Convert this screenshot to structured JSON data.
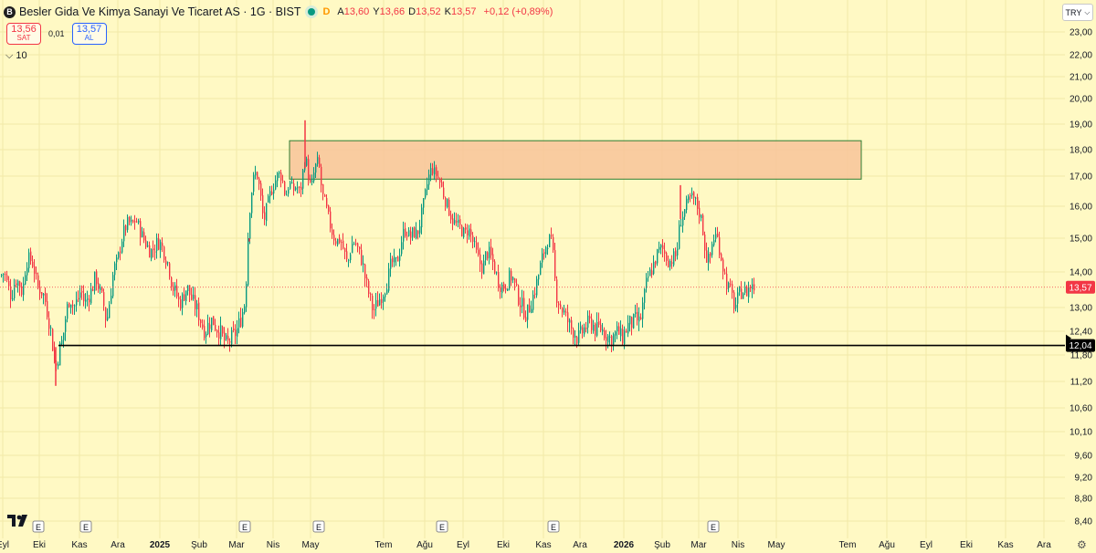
{
  "header": {
    "logo_letter": "B",
    "symbol": "Besler Gida Ve Kimya Sanayi Ve Ticaret AS · 1G · BIST",
    "d_badge": "D",
    "open_label": "A",
    "open": "13,60",
    "high_label": "Y",
    "high": "13,66",
    "low_label": "D",
    "low": "13,52",
    "close_label": "K",
    "close": "13,57",
    "change": "+0,12 (+0,89%)"
  },
  "trade": {
    "sell_price": "13,56",
    "sell_label": "SAT",
    "spread": "0,01",
    "buy_price": "13,57",
    "buy_label": "AL"
  },
  "volume_toggle": {
    "icon": "chevron-down-icon",
    "value": "10"
  },
  "currency": {
    "label": "TRY",
    "icon": "chevron-down-icon"
  },
  "colors": {
    "up": "#089981",
    "down": "#f23645",
    "zone_fill": "#f8c49a",
    "zone_border": "#2e7d32",
    "line": "#000000"
  },
  "chart_data": {
    "type": "candlestick",
    "y_ticks": [
      "23,00",
      "22,00",
      "21,00",
      "20,00",
      "19,00",
      "18,00",
      "17,00",
      "16,00",
      "15,00",
      "14,00",
      "13,00",
      "12,40",
      "11,80",
      "11,20",
      "10,60",
      "10,10",
      "9,60",
      "9,20",
      "8,80",
      "8,40"
    ],
    "y_tick_values": [
      23,
      22,
      21,
      20,
      19,
      18,
      17,
      16,
      15,
      14,
      13,
      12.4,
      11.8,
      11.2,
      10.6,
      10.1,
      9.6,
      9.2,
      8.8,
      8.4
    ],
    "x_labels": [
      "Eyl",
      "Eki",
      "Kas",
      "Ara",
      "2025",
      "Şub",
      "Mar",
      "Nis",
      "May",
      "Tem",
      "Ağu",
      "Eyl",
      "Eki",
      "Kas",
      "Ara",
      "2026",
      "Şub",
      "Mar",
      "Nis",
      "May",
      "Tem",
      "Ağu",
      "Eyl",
      "Eki",
      "Kas",
      "Ara"
    ],
    "bold_x_labels": [
      "2025",
      "2026"
    ],
    "earnings_marker": "E",
    "earnings_count": 7,
    "last_price_label": "13,57",
    "support_label": "12,04",
    "support_level": 12.04,
    "resistance_zone": [
      16.9,
      18.35
    ],
    "approx_path": [
      [
        0,
        13.9
      ],
      [
        4,
        14.0
      ],
      [
        8,
        13.6
      ],
      [
        12,
        13.3
      ],
      [
        16,
        13.8
      ],
      [
        20,
        13.7
      ],
      [
        24,
        13.4
      ],
      [
        28,
        14.3
      ],
      [
        32,
        14.4
      ],
      [
        36,
        14.2
      ],
      [
        40,
        13.6
      ],
      [
        44,
        13.5
      ],
      [
        48,
        13.3
      ],
      [
        52,
        12.8
      ],
      [
        56,
        12.3
      ],
      [
        58,
        11.8
      ],
      [
        60,
        11.45
      ],
      [
        64,
        11.9
      ],
      [
        68,
        12.2
      ],
      [
        72,
        12.9
      ],
      [
        76,
        13.3
      ],
      [
        80,
        13.0
      ],
      [
        84,
        13.2
      ],
      [
        88,
        13.5
      ],
      [
        92,
        13.1
      ],
      [
        96,
        13.3
      ],
      [
        100,
        13.5
      ],
      [
        104,
        13.9
      ],
      [
        108,
        13.5
      ],
      [
        112,
        13.2
      ],
      [
        116,
        12.6
      ],
      [
        120,
        13.3
      ],
      [
        124,
        14.1
      ],
      [
        128,
        14.3
      ],
      [
        132,
        14.9
      ],
      [
        136,
        15.3
      ],
      [
        140,
        15.5
      ],
      [
        144,
        15.4
      ],
      [
        148,
        15.6
      ],
      [
        152,
        15.3
      ],
      [
        156,
        15.0
      ],
      [
        160,
        14.8
      ],
      [
        164,
        14.6
      ],
      [
        168,
        14.7
      ],
      [
        172,
        14.9
      ],
      [
        176,
        14.8
      ],
      [
        180,
        14.5
      ],
      [
        184,
        14.2
      ],
      [
        188,
        13.6
      ],
      [
        192,
        13.4
      ],
      [
        196,
        13.1
      ],
      [
        200,
        13.3
      ],
      [
        204,
        13.6
      ],
      [
        208,
        13.3
      ],
      [
        212,
        13.1
      ],
      [
        216,
        12.9
      ],
      [
        220,
        12.6
      ],
      [
        224,
        12.4
      ],
      [
        228,
        12.6
      ],
      [
        232,
        12.7
      ],
      [
        236,
        12.5
      ],
      [
        240,
        12.4
      ],
      [
        244,
        12.2
      ],
      [
        248,
        12.05
      ],
      [
        252,
        12.2
      ],
      [
        256,
        12.3
      ],
      [
        260,
        12.5
      ],
      [
        264,
        12.8
      ],
      [
        268,
        13.2
      ],
      [
        272,
        15.7
      ],
      [
        276,
        16.8
      ],
      [
        280,
        17.2
      ],
      [
        284,
        16.5
      ],
      [
        288,
        15.5
      ],
      [
        292,
        16.0
      ],
      [
        296,
        16.5
      ],
      [
        300,
        16.8
      ],
      [
        304,
        17.1
      ],
      [
        308,
        17.0
      ],
      [
        312,
        16.3
      ],
      [
        316,
        16.8
      ],
      [
        320,
        16.5
      ],
      [
        324,
        16.7
      ],
      [
        328,
        16.4
      ],
      [
        332,
        17.4
      ],
      [
        334,
        17.8
      ],
      [
        336,
        17.2
      ],
      [
        340,
        16.5
      ],
      [
        344,
        17.3
      ],
      [
        348,
        17.6
      ],
      [
        352,
        16.4
      ],
      [
        356,
        16.0
      ],
      [
        360,
        15.5
      ],
      [
        364,
        15.1
      ],
      [
        368,
        14.9
      ],
      [
        372,
        15.0
      ],
      [
        376,
        14.6
      ],
      [
        380,
        14.2
      ],
      [
        384,
        14.8
      ],
      [
        388,
        14.9
      ],
      [
        392,
        14.6
      ],
      [
        396,
        14.3
      ],
      [
        400,
        13.7
      ],
      [
        404,
        13.3
      ],
      [
        408,
        12.9
      ],
      [
        412,
        13.1
      ],
      [
        416,
        13.3
      ],
      [
        420,
        13.5
      ],
      [
        424,
        13.8
      ],
      [
        428,
        14.3
      ],
      [
        432,
        14.2
      ],
      [
        436,
        14.5
      ],
      [
        440,
        15.1
      ],
      [
        444,
        15.3
      ],
      [
        448,
        15.0
      ],
      [
        452,
        15.2
      ],
      [
        456,
        15.1
      ],
      [
        460,
        15.6
      ],
      [
        464,
        16.2
      ],
      [
        468,
        16.9
      ],
      [
        472,
        17.3
      ],
      [
        476,
        17.1
      ],
      [
        480,
        16.9
      ],
      [
        484,
        16.5
      ],
      [
        488,
        16.1
      ],
      [
        492,
        15.8
      ],
      [
        496,
        15.5
      ],
      [
        500,
        15.4
      ],
      [
        504,
        15.3
      ],
      [
        508,
        15.1
      ],
      [
        512,
        15.3
      ],
      [
        516,
        15.0
      ],
      [
        520,
        14.6
      ],
      [
        524,
        14.3
      ],
      [
        528,
        14.1
      ],
      [
        532,
        14.6
      ],
      [
        536,
        14.5
      ],
      [
        540,
        14.2
      ],
      [
        544,
        13.8
      ],
      [
        548,
        13.6
      ],
      [
        552,
        13.6
      ],
      [
        556,
        13.8
      ],
      [
        560,
        13.9
      ],
      [
        564,
        13.5
      ],
      [
        568,
        13.2
      ],
      [
        572,
        13.0
      ],
      [
        576,
        12.8
      ],
      [
        580,
        13.1
      ],
      [
        584,
        13.4
      ],
      [
        588,
        13.8
      ],
      [
        592,
        14.3
      ],
      [
        596,
        14.7
      ],
      [
        600,
        15.0
      ],
      [
        604,
        14.8
      ],
      [
        608,
        13.4
      ],
      [
        612,
        13.1
      ],
      [
        616,
        12.9
      ],
      [
        620,
        12.7
      ],
      [
        624,
        12.5
      ],
      [
        628,
        12.4
      ],
      [
        632,
        12.2
      ],
      [
        636,
        12.35
      ],
      [
        640,
        12.5
      ],
      [
        644,
        12.6
      ],
      [
        648,
        12.6
      ],
      [
        652,
        12.4
      ],
      [
        656,
        12.5
      ],
      [
        660,
        12.4
      ],
      [
        664,
        12.3
      ],
      [
        668,
        12.2
      ],
      [
        672,
        12.3
      ],
      [
        676,
        12.4
      ],
      [
        680,
        12.2
      ],
      [
        684,
        12.4
      ],
      [
        688,
        12.6
      ],
      [
        692,
        12.6
      ],
      [
        696,
        12.7
      ],
      [
        700,
        12.6
      ],
      [
        704,
        13.2
      ],
      [
        708,
        13.8
      ],
      [
        712,
        14.0
      ],
      [
        716,
        14.3
      ],
      [
        720,
        14.6
      ],
      [
        724,
        14.7
      ],
      [
        728,
        14.5
      ],
      [
        732,
        14.3
      ],
      [
        736,
        14.4
      ],
      [
        740,
        14.5
      ],
      [
        744,
        15.5
      ],
      [
        748,
        15.8
      ],
      [
        752,
        16.1
      ],
      [
        756,
        16.3
      ],
      [
        760,
        16.2
      ],
      [
        764,
        15.9
      ],
      [
        768,
        15.5
      ],
      [
        772,
        14.5
      ],
      [
        776,
        14.3
      ],
      [
        780,
        15.0
      ],
      [
        784,
        15.1
      ],
      [
        788,
        14.6
      ],
      [
        792,
        14.0
      ],
      [
        796,
        13.6
      ],
      [
        800,
        13.4
      ],
      [
        804,
        13.0
      ],
      [
        808,
        13.3
      ],
      [
        812,
        13.5
      ],
      [
        816,
        13.4
      ],
      [
        820,
        13.6
      ],
      [
        824,
        13.57
      ]
    ],
    "x_label_positions_note": "month labels evenly spread as drawn"
  }
}
